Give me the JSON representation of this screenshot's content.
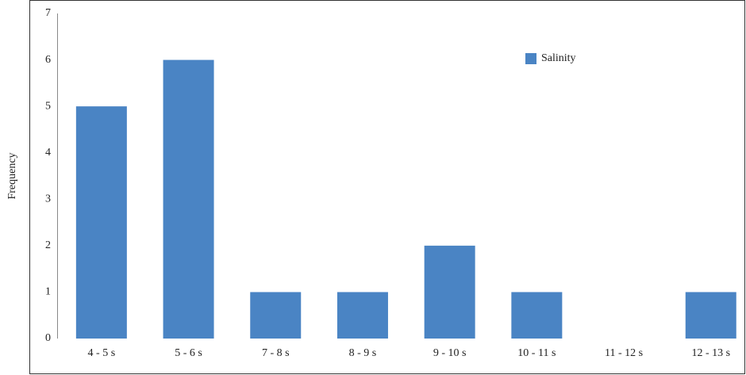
{
  "chart_data": {
    "type": "bar",
    "y_label": "Frequency",
    "categories": [
      "4 - 5 s",
      "5 - 6 s",
      "7 - 8 s",
      "8 - 9 s",
      "9 - 10 s",
      "10 - 11 s",
      "11 - 12 s",
      "12 - 13 s"
    ],
    "series": [
      {
        "name": "Salinity",
        "color": "#4a84c4",
        "values": [
          5,
          6,
          1,
          1,
          2,
          1,
          0,
          1
        ]
      }
    ],
    "ylim": [
      0,
      7
    ],
    "yticks": [
      0,
      1,
      2,
      3,
      4,
      5,
      6,
      7
    ],
    "grid": false,
    "legend": "top-right"
  }
}
